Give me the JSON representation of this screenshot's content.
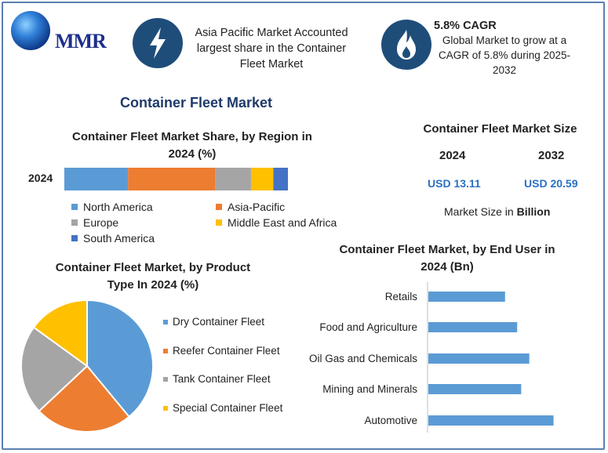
{
  "logo": {
    "text": "MMR"
  },
  "header": {
    "asia_text_1": "Asia Pacific Market Accounted",
    "asia_text_2": "largest share in the Container",
    "asia_text_3": "Fleet Market",
    "cagr_title": "5.8% CAGR",
    "cagr_text_1": "Global Market to grow at a",
    "cagr_text_2": "CAGR of 5.8% during 2025-",
    "cagr_text_3": "2032",
    "bolt_icon": "lightning-icon",
    "flame_icon": "flame-icon"
  },
  "main_title": "Container Fleet Market",
  "region": {
    "title_1": "Container Fleet Market Share, by Region in",
    "title_2": "2024 (%)",
    "year_label": "2024",
    "legend": [
      "North America",
      "Asia-Pacific",
      "Europe",
      "Middle East and Africa",
      "South America"
    ]
  },
  "size": {
    "title": "Container Fleet Market Size",
    "year_a": "2024",
    "year_b": "2032",
    "value_a": "USD 13.11",
    "value_b": "USD 20.59",
    "note": "Market Size in Billion",
    "note_prefix": "Market Size in ",
    "note_bold": "Billion"
  },
  "product": {
    "title_1": "Container Fleet Market, by Product",
    "title_2": "Type In 2024 (%)",
    "legend": [
      "Dry Container Fleet",
      "Reefer Container Fleet",
      "Tank Container Fleet",
      "Special Container Fleet"
    ]
  },
  "enduser": {
    "title_1": "Container Fleet Market, by End User in",
    "title_2": "2024 (Bn)"
  },
  "colors": {
    "blue": "#5b9bd5",
    "orange": "#ed7d31",
    "gray": "#a5a5a5",
    "yellow": "#ffc000",
    "dark_blue": "#4472c4",
    "accent": "#1f4d7a"
  },
  "chart_data": [
    {
      "type": "bar",
      "orientation": "horizontal-stacked",
      "title": "Container Fleet Market Share, by Region in 2024 (%)",
      "categories": [
        "2024"
      ],
      "series": [
        {
          "name": "North America",
          "values": [
            28.5
          ]
        },
        {
          "name": "Asia-Pacific",
          "values": [
            39
          ]
        },
        {
          "name": "Europe",
          "values": [
            16
          ]
        },
        {
          "name": "Middle East and Africa",
          "values": [
            10
          ]
        },
        {
          "name": "South America",
          "values": [
            6.5
          ]
        }
      ],
      "legend": "bottom"
    },
    {
      "type": "pie",
      "title": "Container Fleet Market, by Product Type In 2024 (%)",
      "categories": [
        "Dry Container Fleet",
        "Reefer Container Fleet",
        "Tank Container Fleet",
        "Special Container Fleet"
      ],
      "values": [
        39,
        24,
        22,
        15
      ],
      "legend": "right"
    },
    {
      "type": "bar",
      "orientation": "horizontal",
      "title": "Container Fleet Market, by End User in 2024 (Bn)",
      "categories": [
        "Retails",
        "Food and Agriculture",
        "Oil Gas and Chemicals",
        "Mining and Minerals",
        "Automotive"
      ],
      "values": [
        1.9,
        2.2,
        2.5,
        2.3,
        3.1
      ],
      "xlim": [
        0,
        3.4
      ]
    }
  ]
}
